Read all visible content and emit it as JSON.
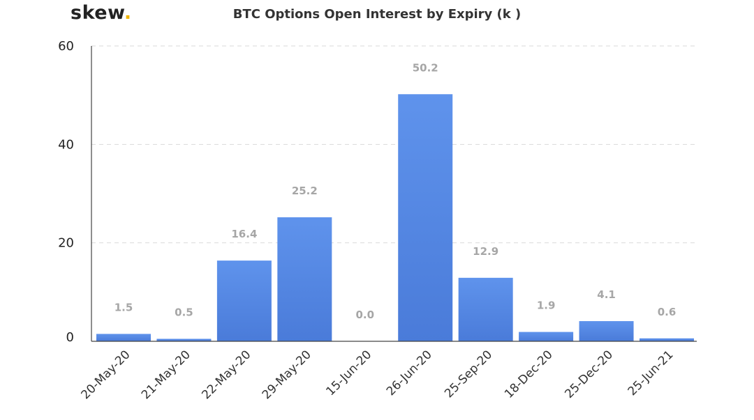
{
  "logo": {
    "text": "skew",
    "dot": "."
  },
  "chart_data": {
    "type": "bar",
    "title": "BTC Options Open Interest by Expiry (k   )",
    "xlabel": "",
    "ylabel": "",
    "categories": [
      "20-May-20",
      "21-May-20",
      "22-May-20",
      "29-May-20",
      "15-Jun-20",
      "26-Jun-20",
      "25-Sep-20",
      "18-Dec-20",
      "25-Dec-20",
      "25-Jun-21"
    ],
    "values": [
      1.5,
      0.5,
      16.4,
      25.2,
      0.0,
      50.2,
      12.9,
      1.9,
      4.1,
      0.6
    ],
    "data_labels": [
      "1.5",
      "0.5",
      "16.4",
      "25.2",
      "0.0",
      "50.2",
      "12.9",
      "1.9",
      "4.1",
      "0.6"
    ],
    "yticks": [
      0,
      20,
      40,
      60
    ],
    "ylim": [
      0,
      60
    ],
    "grid": true,
    "legend": "none",
    "colors": {
      "bar_top": "#5f93ec",
      "bar_bottom": "#4a7bd9",
      "grid": "#d9d9d9",
      "axis": "#444444",
      "data_label": "#a6a6a6",
      "logo_dot": "#f0b400"
    }
  }
}
